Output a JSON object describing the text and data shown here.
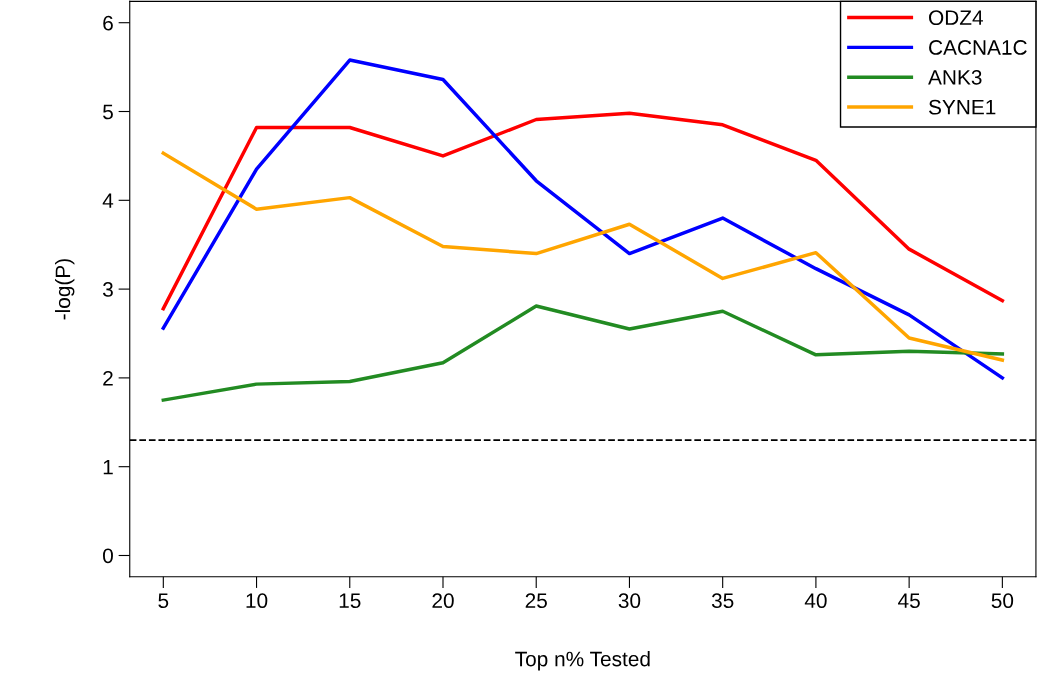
{
  "chart_data": {
    "type": "line",
    "xlabel": "Top n% Tested",
    "ylabel": "-log(P)",
    "x": [
      5,
      10,
      15,
      20,
      25,
      30,
      35,
      40,
      45,
      50
    ],
    "series": [
      {
        "name": "ODZ4",
        "color": "#ff0000",
        "values": [
          2.78,
          4.82,
          4.82,
          4.5,
          4.91,
          4.98,
          4.85,
          4.45,
          3.45,
          2.87
        ]
      },
      {
        "name": "CACNA1C",
        "color": "#0000ff",
        "values": [
          2.56,
          4.35,
          5.58,
          5.36,
          4.22,
          3.4,
          3.8,
          3.23,
          2.71,
          2.0
        ]
      },
      {
        "name": "ANK3",
        "color": "#228b22",
        "values": [
          1.75,
          1.93,
          1.96,
          2.17,
          2.81,
          2.55,
          2.75,
          2.26,
          2.3,
          2.27
        ]
      },
      {
        "name": "SYNE1",
        "color": "#ffa500",
        "values": [
          4.53,
          3.9,
          4.03,
          3.48,
          3.4,
          3.73,
          3.12,
          3.41,
          2.45,
          2.2
        ]
      }
    ],
    "xlim": [
      3.2,
      51.8
    ],
    "ylim": [
      -0.24,
      6.24
    ],
    "xticks": [
      5,
      10,
      15,
      20,
      25,
      30,
      35,
      40,
      45,
      50
    ],
    "yticks": [
      0,
      1,
      2,
      3,
      4,
      5,
      6
    ],
    "ref_lines": [
      {
        "axis": "y",
        "value": 1.3,
        "color": "#000000",
        "line_style": "dashed"
      }
    ],
    "legend": "top right",
    "grid": false,
    "marker": "none",
    "line_style": "solid"
  }
}
